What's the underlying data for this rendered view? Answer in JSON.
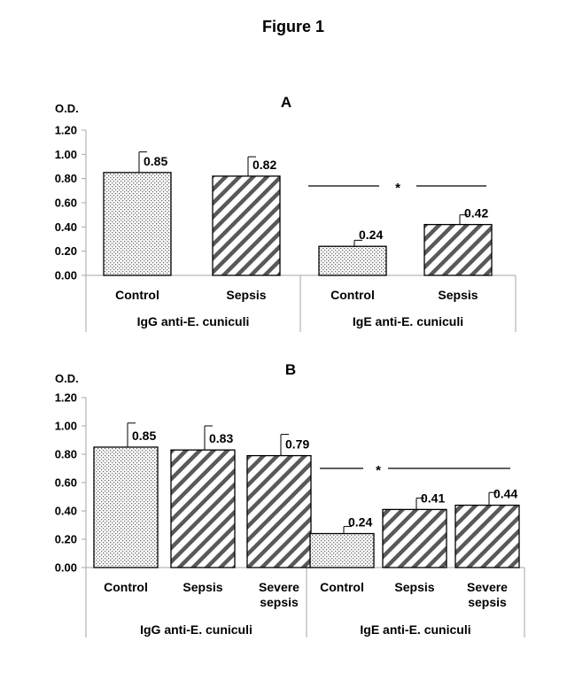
{
  "figure_title": "Figure 1",
  "colors": {
    "axis": "#a6a6a6",
    "bar_stroke": "#000000",
    "text": "#000000",
    "control_pattern": "stippled-dots",
    "sepsis_pattern": "diagonal-hatch"
  },
  "chart_data": [
    {
      "type": "bar",
      "panel": "A",
      "ylabel": "O.D.",
      "ylim": [
        0,
        1.2
      ],
      "yticks": [
        "0.00",
        "0.20",
        "0.40",
        "0.60",
        "0.80",
        "1.00",
        "1.20"
      ],
      "groups": [
        {
          "label": "IgG anti-E. cuniculi",
          "bars": [
            {
              "category": "Control",
              "value": 0.85,
              "label": "0.85",
              "error": 0.17,
              "pattern": "dots"
            },
            {
              "category": "Sepsis",
              "value": 0.82,
              "label": "0.82",
              "error": 0.16,
              "pattern": "hatch"
            }
          ]
        },
        {
          "label": "IgE  anti-E. cuniculi",
          "bars": [
            {
              "category": "Control",
              "value": 0.24,
              "label": "0.24",
              "error": 0.05,
              "pattern": "dots"
            },
            {
              "category": "Sepsis",
              "value": 0.42,
              "label": "0.42",
              "error": 0.08,
              "pattern": "hatch"
            }
          ]
        }
      ],
      "significance": {
        "symbol": "*",
        "between": [
          "IgE Control",
          "IgE Sepsis"
        ]
      },
      "grid": false,
      "legend": "none"
    },
    {
      "type": "bar",
      "panel": "B",
      "ylabel": "O.D.",
      "ylim": [
        0,
        1.2
      ],
      "yticks": [
        "0.00",
        "0.20",
        "0.40",
        "0.60",
        "0.80",
        "1.00",
        "1.20"
      ],
      "groups": [
        {
          "label": "IgG anti-E. cuniculi",
          "bars": [
            {
              "category": "Control",
              "value": 0.85,
              "label": "0.85",
              "error": 0.17,
              "pattern": "dots"
            },
            {
              "category": "Sepsis",
              "value": 0.83,
              "label": "0.83",
              "error": 0.17,
              "pattern": "hatch"
            },
            {
              "category": "Severe sepsis",
              "value": 0.79,
              "label": "0.79",
              "error": 0.15,
              "pattern": "hatch"
            }
          ]
        },
        {
          "label": "IgE  anti-E. cuniculi",
          "bars": [
            {
              "category": "Control",
              "value": 0.24,
              "label": "0.24",
              "error": 0.05,
              "pattern": "dots"
            },
            {
              "category": "Sepsis",
              "value": 0.41,
              "label": "0.41",
              "error": 0.08,
              "pattern": "hatch"
            },
            {
              "category": "Severe sepsis",
              "value": 0.44,
              "label": "0.44",
              "error": 0.09,
              "pattern": "hatch"
            }
          ]
        }
      ],
      "significance": {
        "symbol": "*",
        "between": [
          "IgE Control",
          "IgE Severe sepsis"
        ]
      },
      "grid": false,
      "legend": "none"
    }
  ]
}
